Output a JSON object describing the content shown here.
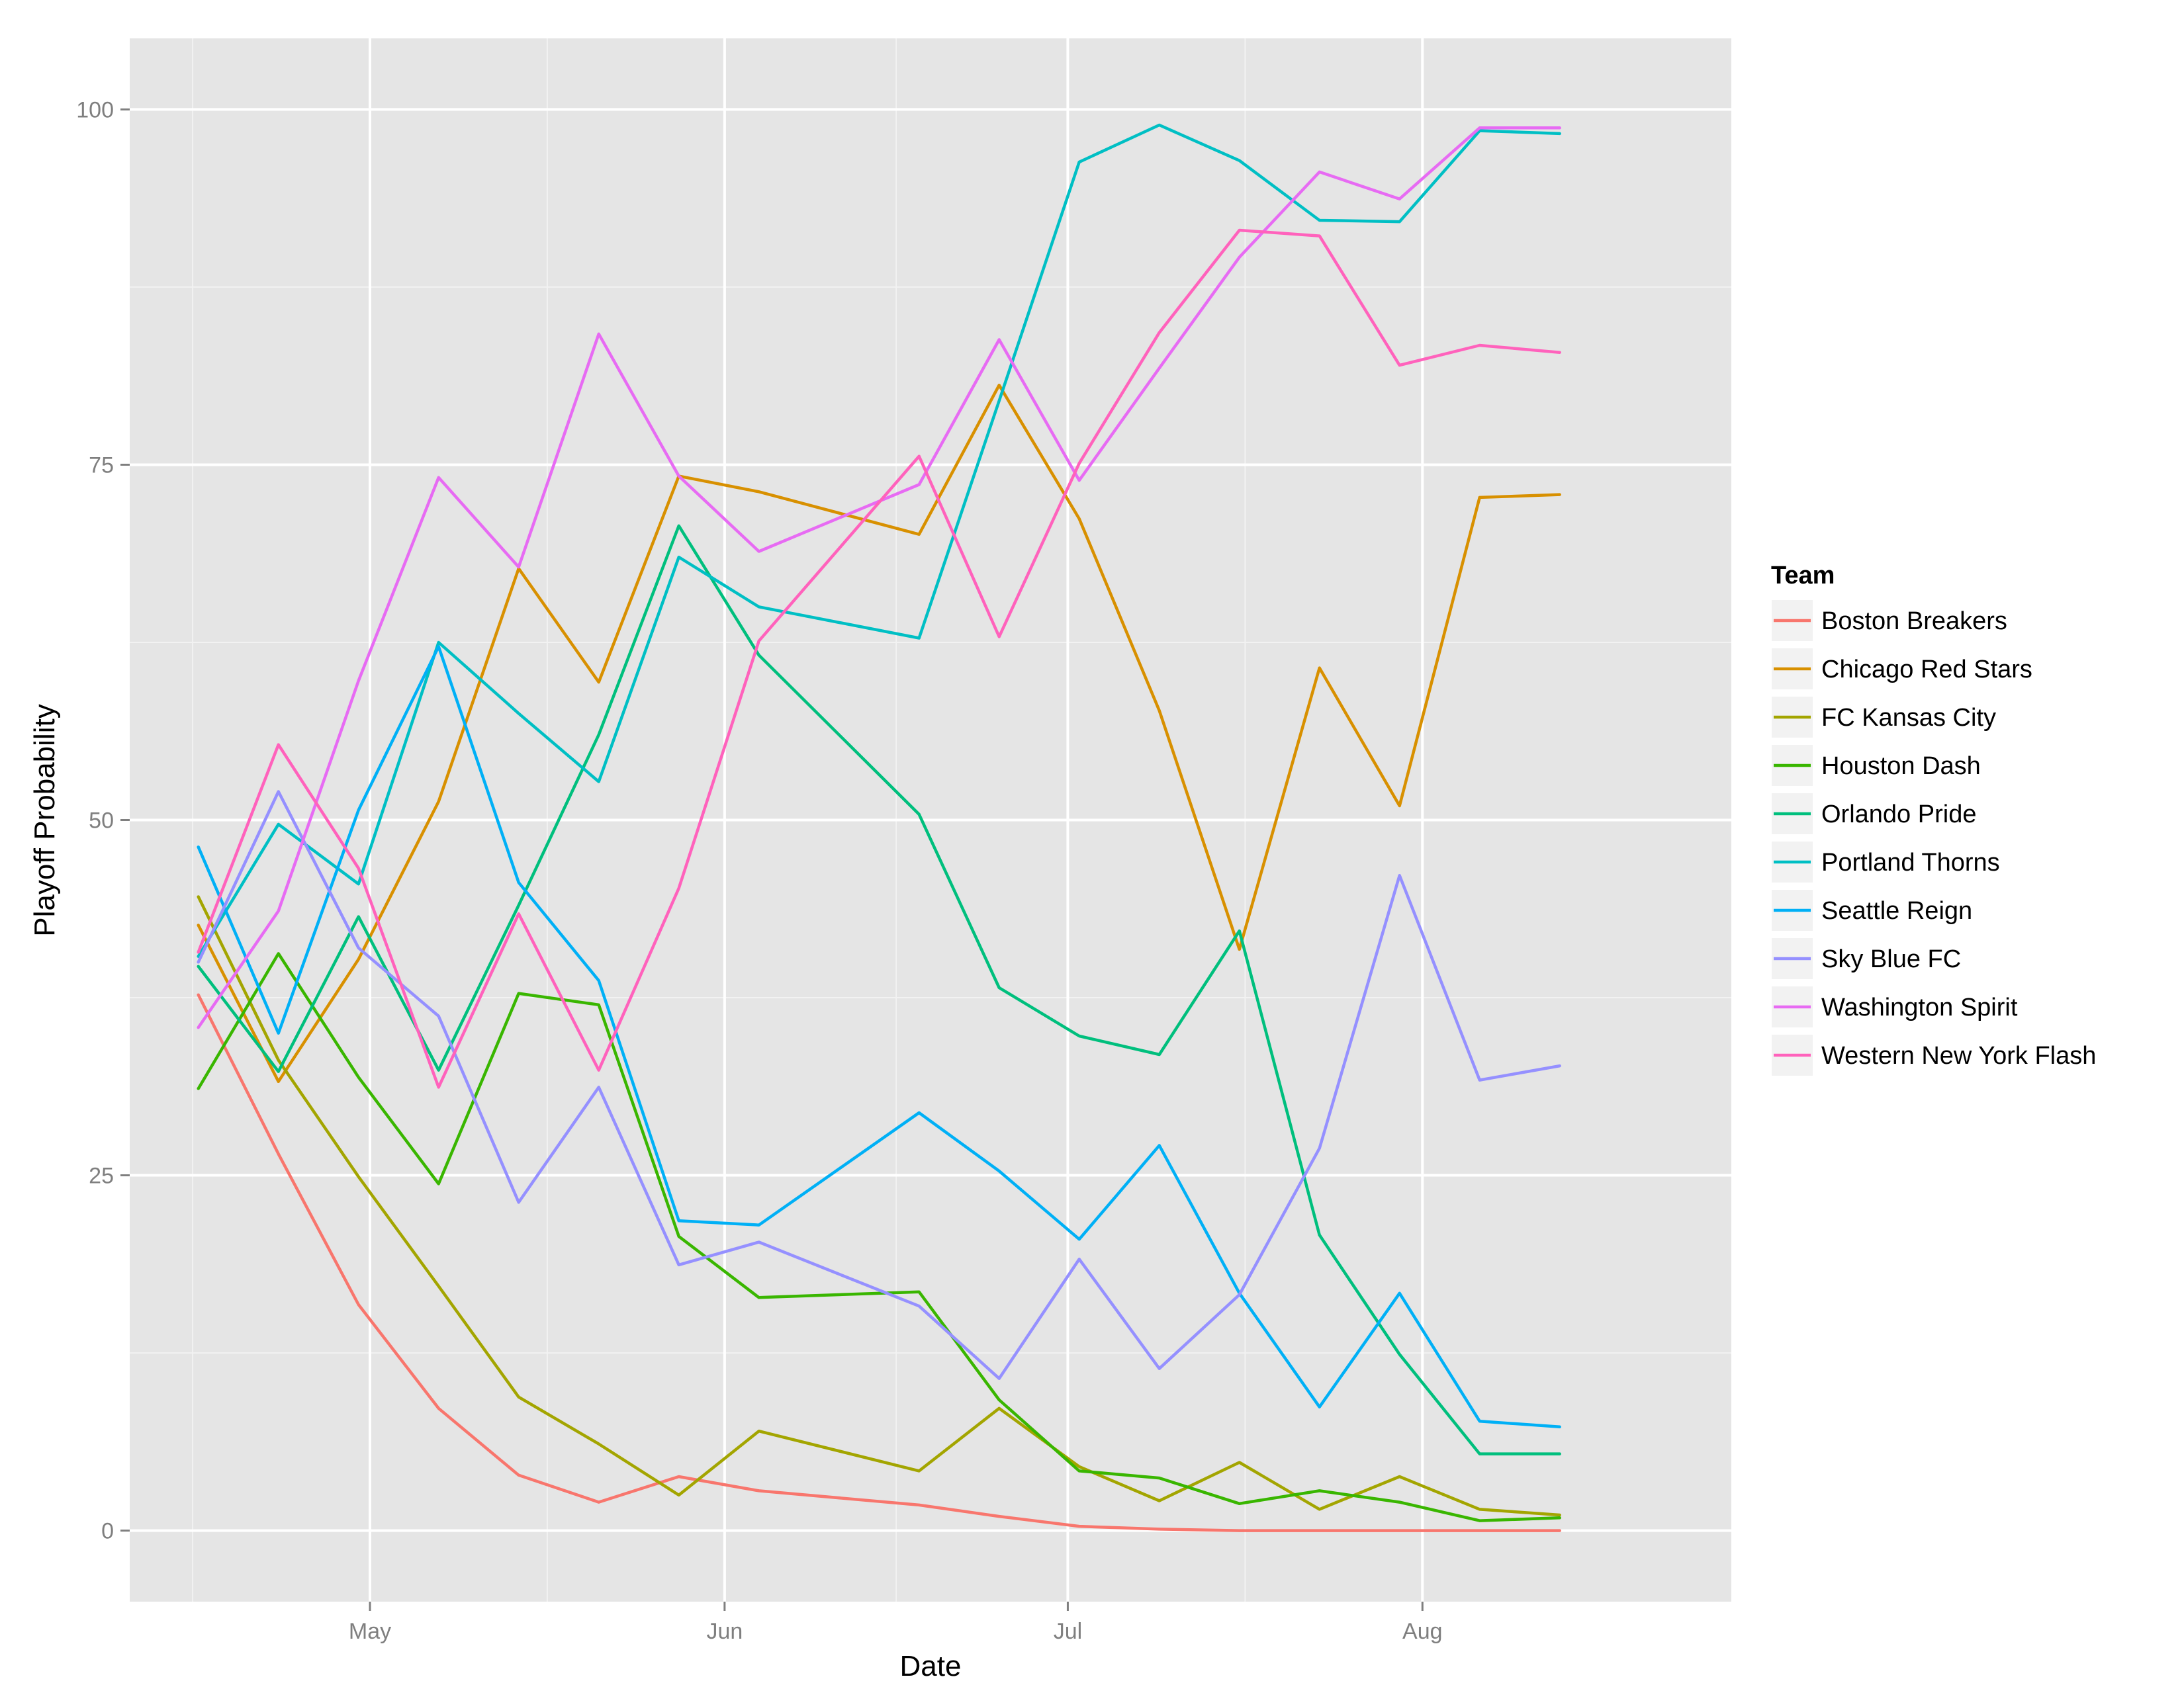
{
  "chart_data": {
    "type": "line",
    "title": "",
    "xlabel": "Date",
    "ylabel": "Playoff Probability",
    "legend_title": "Team",
    "legend_position": "right",
    "grid": true,
    "ylim": [
      -5,
      105
    ],
    "yticks": [
      0,
      25,
      50,
      75,
      100
    ],
    "ytick_labels": [
      "0",
      "25",
      "50",
      "75",
      "100"
    ],
    "xlim": [
      "2016-04-10",
      "2016-08-28"
    ],
    "xticks": [
      "2016-05-01",
      "2016-06-01",
      "2016-07-01",
      "2016-08-01"
    ],
    "xtick_labels": [
      "May",
      "Jun",
      "Jul",
      "Aug"
    ],
    "x": [
      "2016-04-16",
      "2016-04-23",
      "2016-04-30",
      "2016-05-07",
      "2016-05-14",
      "2016-05-21",
      "2016-05-28",
      "2016-06-04",
      "2016-06-18",
      "2016-06-25",
      "2016-07-02",
      "2016-07-09",
      "2016-07-16",
      "2016-07-23",
      "2016-07-30",
      "2016-08-06",
      "2016-08-13"
    ],
    "series": [
      {
        "name": "Boston Breakers",
        "color": "#F8766D",
        "values": [
          37.7,
          26.5,
          15.9,
          8.6,
          3.9,
          2.0,
          3.8,
          2.8,
          1.8,
          1.0,
          0.3,
          0.1,
          0.0,
          0.0,
          0.0,
          0.0,
          0.0
        ]
      },
      {
        "name": "Chicago Red Stars",
        "color": "#D89000",
        "values": [
          42.6,
          31.6,
          40.2,
          51.3,
          67.7,
          59.7,
          74.2,
          73.1,
          70.1,
          80.6,
          71.2,
          57.7,
          40.9,
          60.7,
          51.0,
          72.7,
          72.9
        ]
      },
      {
        "name": "FC Kansas City",
        "color": "#A3A500",
        "values": [
          44.6,
          33.1,
          24.9,
          17.2,
          9.4,
          6.1,
          2.5,
          7.0,
          4.2,
          8.6,
          4.5,
          2.1,
          4.8,
          1.5,
          3.8,
          1.5,
          1.1
        ]
      },
      {
        "name": "Houston Dash",
        "color": "#39B600",
        "values": [
          31.1,
          40.6,
          31.9,
          24.4,
          37.8,
          37.0,
          20.7,
          16.4,
          16.8,
          9.2,
          4.2,
          3.7,
          1.9,
          2.8,
          2.0,
          0.7,
          0.9
        ]
      },
      {
        "name": "Orlando Pride",
        "color": "#00BF7D",
        "values": [
          39.7,
          32.3,
          43.2,
          32.4,
          44.0,
          56.0,
          70.7,
          61.6,
          50.4,
          38.2,
          34.8,
          33.5,
          42.2,
          20.8,
          12.4,
          5.4,
          5.4
        ]
      },
      {
        "name": "Portland Thorns",
        "color": "#00BFC4",
        "values": [
          40.4,
          49.7,
          45.5,
          62.5,
          57.5,
          52.7,
          68.5,
          65.0,
          62.8,
          79.5,
          96.3,
          98.9,
          96.4,
          92.2,
          92.1,
          98.5,
          98.3
        ]
      },
      {
        "name": "Seattle Reign",
        "color": "#00B0F6",
        "values": [
          48.1,
          35.0,
          50.7,
          62.2,
          45.6,
          38.7,
          21.8,
          21.5,
          29.4,
          25.3,
          20.5,
          27.1,
          16.7,
          8.7,
          16.7,
          7.7,
          7.3
        ]
      },
      {
        "name": "Sky Blue FC",
        "color": "#9590FF",
        "values": [
          40.0,
          52.0,
          41.0,
          36.2,
          23.1,
          31.2,
          18.7,
          20.3,
          15.8,
          10.7,
          19.1,
          11.4,
          16.6,
          26.9,
          46.1,
          31.7,
          32.7
        ]
      },
      {
        "name": "Washington Spirit",
        "color": "#E76BF3",
        "values": [
          35.4,
          43.6,
          59.8,
          74.1,
          67.8,
          84.2,
          74.2,
          68.9,
          73.6,
          83.8,
          73.9,
          81.8,
          89.6,
          95.6,
          93.7,
          98.7,
          98.7
        ]
      },
      {
        "name": "Western New York Flash",
        "color": "#FF62BC",
        "values": [
          40.7,
          55.3,
          46.6,
          31.2,
          43.4,
          32.4,
          45.2,
          62.6,
          75.6,
          62.9,
          75.1,
          84.3,
          91.5,
          91.1,
          82.0,
          83.4,
          82.9
        ]
      }
    ]
  }
}
